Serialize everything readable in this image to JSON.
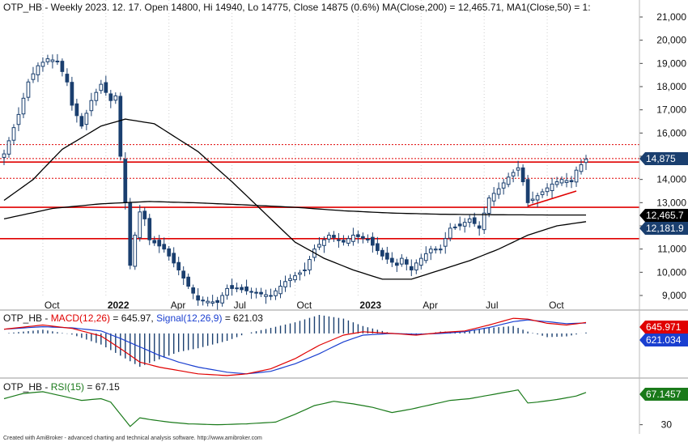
{
  "chart_data": [
    {
      "type": "candlestick",
      "ticker": "OTP_HB",
      "header": {
        "ticker": "OTP_HB",
        "rest": " - Weekly 2023. 12. 17. Open 14800, Hi 14940, Lo 14775, Close 14875 (0.6%) MA(Close,200) = 12,465.71, MA1(Close,50) = 1:"
      },
      "ylim": [
        9000,
        21000
      ],
      "y_ticks": [
        9000,
        10000,
        11000,
        12000,
        13000,
        14000,
        15000,
        16000,
        17000,
        18000,
        19000,
        20000,
        21000
      ],
      "y_tick_labels": [
        "9,000",
        "10,000",
        "11,000",
        "12,000",
        "13,000",
        "14,000",
        "15,000",
        "16,000",
        "17,000",
        "18,000",
        "19,000",
        "20,000",
        "21,000"
      ],
      "x_ticks": [
        {
          "label": "Oct",
          "week": 8,
          "bold": false
        },
        {
          "label": "2022",
          "week": 21,
          "bold": true
        },
        {
          "label": "Apr",
          "week": 34,
          "bold": false
        },
        {
          "label": "Jul",
          "week": 47,
          "bold": false
        },
        {
          "label": "Oct",
          "week": 60,
          "bold": false
        },
        {
          "label": "2023",
          "week": 73,
          "bold": true
        },
        {
          "label": "Apr",
          "week": 86,
          "bold": false
        },
        {
          "label": "Jul",
          "week": 99,
          "bold": false
        },
        {
          "label": "Oct",
          "week": 112,
          "bold": false
        }
      ],
      "close_waypoints": [
        [
          0,
          15100
        ],
        [
          3,
          16800
        ],
        [
          5,
          18200
        ],
        [
          7,
          18900
        ],
        [
          9,
          19200
        ],
        [
          11,
          19100
        ],
        [
          13,
          18200
        ],
        [
          14,
          17200
        ],
        [
          16,
          16300
        ],
        [
          18,
          17400
        ],
        [
          20,
          18100
        ],
        [
          22,
          17400
        ],
        [
          23,
          17600
        ],
        [
          24,
          15000
        ],
        [
          25,
          13000
        ],
        [
          26,
          10300
        ],
        [
          27,
          11600
        ],
        [
          28,
          12600
        ],
        [
          29,
          12300
        ],
        [
          30,
          11400
        ],
        [
          33,
          11000
        ],
        [
          36,
          10100
        ],
        [
          38,
          9400
        ],
        [
          40,
          8800
        ],
        [
          44,
          8700
        ],
        [
          46,
          9300
        ],
        [
          48,
          9300
        ],
        [
          52,
          9100
        ],
        [
          55,
          9000
        ],
        [
          58,
          9600
        ],
        [
          62,
          10100
        ],
        [
          64,
          11000
        ],
        [
          67,
          11600
        ],
        [
          70,
          11300
        ],
        [
          72,
          11600
        ],
        [
          75,
          11400
        ],
        [
          78,
          10700
        ],
        [
          81,
          10300
        ],
        [
          82,
          10600
        ],
        [
          84,
          10100
        ],
        [
          85,
          10400
        ],
        [
          88,
          11000
        ],
        [
          90,
          11000
        ],
        [
          92,
          11900
        ],
        [
          94,
          12000
        ],
        [
          96,
          12300
        ],
        [
          98,
          11900
        ],
        [
          100,
          13200
        ],
        [
          102,
          13600
        ],
        [
          104,
          14100
        ],
        [
          106,
          14500
        ],
        [
          107,
          13900
        ],
        [
          108,
          13000
        ],
        [
          110,
          13300
        ],
        [
          113,
          13800
        ],
        [
          115,
          14000
        ],
        [
          117,
          13900
        ],
        [
          118,
          14400
        ],
        [
          120,
          14875
        ]
      ],
      "ma200_waypoints": [
        [
          0,
          12300
        ],
        [
          10,
          12750
        ],
        [
          20,
          12950
        ],
        [
          30,
          13050
        ],
        [
          40,
          12990
        ],
        [
          50,
          12900
        ],
        [
          60,
          12800
        ],
        [
          70,
          12650
        ],
        [
          80,
          12550
        ],
        [
          90,
          12500
        ],
        [
          100,
          12480
        ],
        [
          110,
          12470
        ],
        [
          120,
          12465.71
        ]
      ],
      "ma50_waypoints": [
        [
          0,
          13100
        ],
        [
          6,
          14000
        ],
        [
          12,
          15300
        ],
        [
          20,
          16300
        ],
        [
          25,
          16600
        ],
        [
          31,
          16400
        ],
        [
          40,
          15200
        ],
        [
          47,
          13900
        ],
        [
          54,
          12500
        ],
        [
          60,
          11300
        ],
        [
          66,
          10600
        ],
        [
          72,
          10100
        ],
        [
          78,
          9700
        ],
        [
          84,
          9700
        ],
        [
          90,
          10100
        ],
        [
          96,
          10500
        ],
        [
          102,
          11000
        ],
        [
          108,
          11600
        ],
        [
          114,
          12000
        ],
        [
          120,
          12182
        ]
      ],
      "horizontal_lines": [
        {
          "value": 15500,
          "style": "dotted"
        },
        {
          "value": 14900,
          "style": "dotted"
        },
        {
          "value": 14750,
          "style": "solid"
        },
        {
          "value": 14050,
          "style": "dotted"
        },
        {
          "value": 12800,
          "style": "solid"
        },
        {
          "value": 11450,
          "style": "solid"
        }
      ],
      "trendline": {
        "from": [
          108,
          12850
        ],
        "to": [
          118,
          13500
        ]
      },
      "value_badges": [
        {
          "label": "14,875",
          "value": 14875,
          "color": "#1a3f6f"
        },
        {
          "label": "12,465.7",
          "value": 12465.71,
          "color": "#000000"
        },
        {
          "label": "12,181.9",
          "value": 12181.9,
          "color": "#1a3f6f"
        }
      ],
      "colors": {
        "candle": "#1a3f6f",
        "hline": "#e00000",
        "ma200": "#000000",
        "ma50": "#000000"
      }
    },
    {
      "type": "line",
      "indicator": "MACD",
      "header": {
        "ticker": "OTP_HB",
        "sep": " - ",
        "macd_label": "MACD(12,26)",
        "macd_value": " = 645.97, ",
        "signal_label": "Signal(12,26,9)",
        "signal_value": " = 621.03"
      },
      "ylim": [
        -2600,
        1100
      ],
      "macd_waypoints": [
        [
          0,
          250
        ],
        [
          8,
          500
        ],
        [
          14,
          300
        ],
        [
          20,
          -150
        ],
        [
          24,
          -900
        ],
        [
          28,
          -1700
        ],
        [
          32,
          -2000
        ],
        [
          36,
          -2200
        ],
        [
          40,
          -2400
        ],
        [
          46,
          -2500
        ],
        [
          50,
          -2400
        ],
        [
          55,
          -2100
        ],
        [
          60,
          -1500
        ],
        [
          65,
          -700
        ],
        [
          70,
          -100
        ],
        [
          74,
          100
        ],
        [
          80,
          0
        ],
        [
          85,
          -100
        ],
        [
          90,
          50
        ],
        [
          95,
          150
        ],
        [
          100,
          500
        ],
        [
          105,
          900
        ],
        [
          108,
          850
        ],
        [
          112,
          600
        ],
        [
          116,
          500
        ],
        [
          120,
          645.97
        ]
      ],
      "signal_waypoints": [
        [
          0,
          250
        ],
        [
          8,
          400
        ],
        [
          14,
          330
        ],
        [
          20,
          150
        ],
        [
          24,
          -300
        ],
        [
          28,
          -800
        ],
        [
          32,
          -1300
        ],
        [
          36,
          -1700
        ],
        [
          40,
          -2000
        ],
        [
          46,
          -2300
        ],
        [
          50,
          -2400
        ],
        [
          55,
          -2250
        ],
        [
          60,
          -1800
        ],
        [
          65,
          -1200
        ],
        [
          70,
          -500
        ],
        [
          74,
          -100
        ],
        [
          80,
          0
        ],
        [
          85,
          -50
        ],
        [
          90,
          0
        ],
        [
          95,
          100
        ],
        [
          100,
          350
        ],
        [
          105,
          700
        ],
        [
          108,
          800
        ],
        [
          112,
          700
        ],
        [
          116,
          580
        ],
        [
          120,
          621.03
        ]
      ],
      "value_badges": [
        {
          "label": "645.971",
          "value": 645.97,
          "color": "#e00000"
        },
        {
          "label": "621.034",
          "value": 621.03,
          "color": "#1a3fd0"
        }
      ],
      "colors": {
        "macd": "#e00000",
        "signal": "#1a3fd0",
        "histogram": "#1a3f6f"
      }
    },
    {
      "type": "line",
      "indicator": "RSI",
      "header": {
        "ticker": "OTP_HB",
        "sep": " - ",
        "rsi_label": "RSI(15)",
        "rsi_value": " = 67.15"
      },
      "ylim": [
        25,
        80
      ],
      "y_ticks": [
        30
      ],
      "y_tick_labels": [
        "30"
      ],
      "rsi_waypoints": [
        [
          0,
          60
        ],
        [
          4,
          66
        ],
        [
          8,
          68
        ],
        [
          12,
          63
        ],
        [
          16,
          58
        ],
        [
          20,
          60
        ],
        [
          22,
          56
        ],
        [
          24,
          42
        ],
        [
          26,
          28
        ],
        [
          28,
          38
        ],
        [
          30,
          36
        ],
        [
          34,
          33
        ],
        [
          38,
          31
        ],
        [
          44,
          30
        ],
        [
          50,
          31
        ],
        [
          56,
          33
        ],
        [
          60,
          42
        ],
        [
          64,
          52
        ],
        [
          68,
          57
        ],
        [
          72,
          54
        ],
        [
          76,
          50
        ],
        [
          80,
          44
        ],
        [
          84,
          48
        ],
        [
          88,
          53
        ],
        [
          92,
          58
        ],
        [
          96,
          60
        ],
        [
          100,
          64
        ],
        [
          104,
          68
        ],
        [
          106,
          70
        ],
        [
          108,
          55
        ],
        [
          110,
          56
        ],
        [
          114,
          59
        ],
        [
          118,
          63
        ],
        [
          120,
          67.15
        ]
      ],
      "value_badges": [
        {
          "label": "67.1457",
          "value": 67.15,
          "color": "#1a7a1a"
        }
      ],
      "colors": {
        "rsi": "#1a7a1a"
      }
    }
  ],
  "footer": {
    "text": "Created with AmiBroker - advanced charting and technical analysis software. http://www.amibroker.com"
  }
}
